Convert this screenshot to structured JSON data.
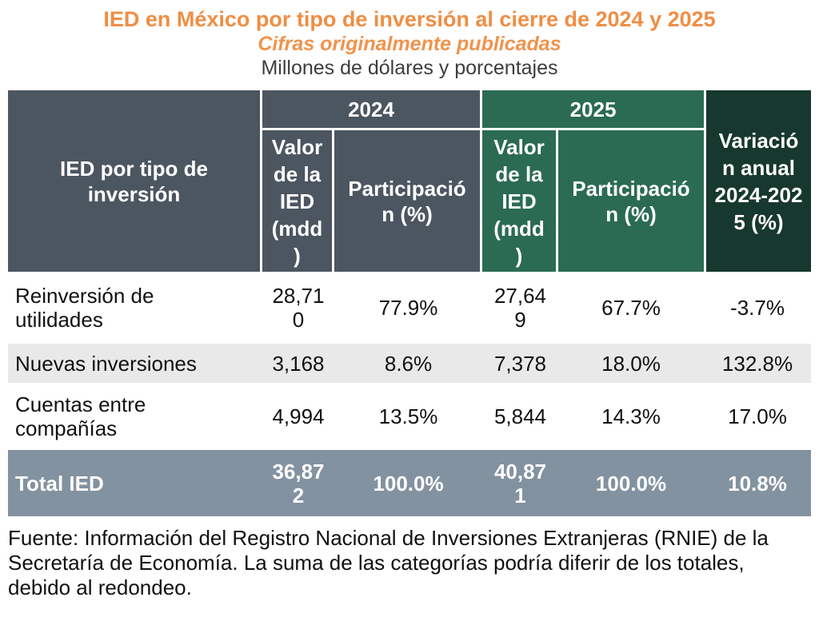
{
  "titles": {
    "main": "IED en México por tipo de inversión al cierre de 2024 y 2025",
    "sub": "Cifras originalmente publicadas",
    "units": "Millones de dólares y porcentajes"
  },
  "colors": {
    "accent_orange": "#EF8E44",
    "header_slate": "#4C5661",
    "header_green_2025": "#2B6B53",
    "header_darkgreen_variacion": "#17382E",
    "total_row_bluegray": "#8292A0",
    "alt_row_gray": "#E9E9E9"
  },
  "table": {
    "row_header": "IED por tipo de\ninversión",
    "groups": [
      {
        "year": "2024",
        "valor": "Valor\nde la\nIED\n(mdd\n)",
        "participacion": "Participació\nn (%)"
      },
      {
        "year": "2025",
        "valor": "Valor\nde la\nIED\n(mdd\n)",
        "participacion": "Participació\nn (%)"
      }
    ],
    "variacion_header": "Variació\nn anual\n2024-202\n5 (%)",
    "rows": [
      {
        "label": "Reinversión de\nutilidades",
        "v2024": "28,71\n0",
        "p2024": "77.9%",
        "v2025": "27,64\n9",
        "p2025": "67.7%",
        "variacion": "-3.7%"
      },
      {
        "label": "Nuevas inversiones",
        "v2024": "3,168",
        "p2024": "8.6%",
        "v2025": "7,378",
        "p2025": "18.0%",
        "variacion": "132.8%"
      },
      {
        "label": "Cuentas entre\ncompañías",
        "v2024": "4,994",
        "p2024": "13.5%",
        "v2025": "5,844",
        "p2025": "14.3%",
        "variacion": "17.0%"
      }
    ],
    "total": {
      "label": "Total IED",
      "v2024": "36,87\n2",
      "p2024": "100.0%",
      "v2025": "40,87\n1",
      "p2025": "100.0%",
      "variacion": "10.8%"
    }
  },
  "source_note": "Fuente: Información del Registro Nacional de Inversiones Extranjeras (RNIE) de la\nSecretaría de Economía. La suma de las categorías podría diferir de los totales,\ndebido al redondeo."
}
